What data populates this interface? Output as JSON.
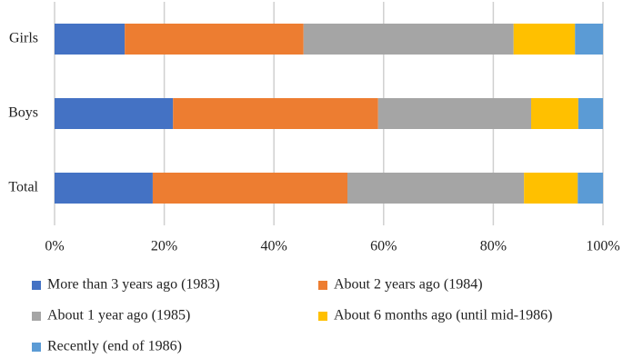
{
  "chart_data": {
    "type": "stacked-bar-horizontal",
    "categories": [
      "Girls",
      "Boys",
      "Total"
    ],
    "series": [
      {
        "name": "More than 3 years ago (1983)",
        "color": "#4472c4",
        "values": [
          12.8,
          21.6,
          17.9
        ]
      },
      {
        "name": "About 2 years ago (1984)",
        "color": "#ed7d31",
        "values": [
          32.6,
          37.4,
          35.5
        ]
      },
      {
        "name": "About 1 year ago (1985)",
        "color": "#a5a5a5",
        "values": [
          38.3,
          27.9,
          32.2
        ]
      },
      {
        "name": "About 6 months ago (until mid-1986)",
        "color": "#ffc000",
        "values": [
          11.2,
          8.6,
          9.8
        ]
      },
      {
        "name": "Recently (end of 1986)",
        "color": "#5b9bd5",
        "values": [
          5.1,
          4.5,
          4.6
        ]
      }
    ],
    "xlim": [
      0,
      100
    ],
    "xticks": [
      {
        "value": 0,
        "label": "0%"
      },
      {
        "value": 20,
        "label": "20%"
      },
      {
        "value": 40,
        "label": "40%"
      },
      {
        "value": 60,
        "label": "60%"
      },
      {
        "value": 80,
        "label": "80%"
      },
      {
        "value": 100,
        "label": "100%"
      }
    ],
    "grid": true,
    "legend": "bottom"
  }
}
